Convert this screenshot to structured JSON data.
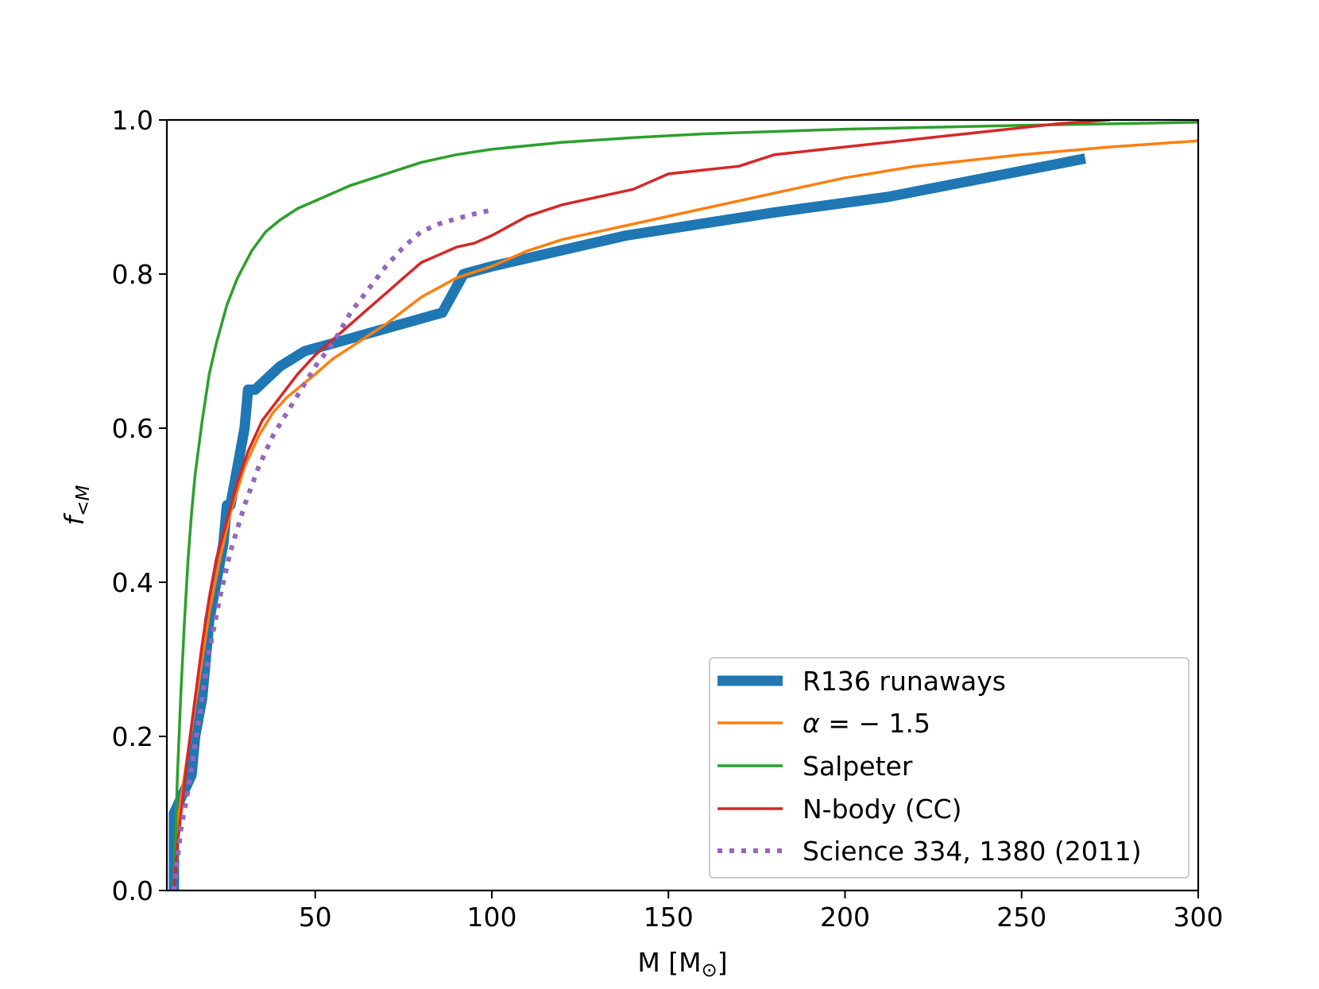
{
  "chart_data": {
    "type": "line",
    "title": "",
    "xlabel_main": "M [M",
    "xlabel_sub": "⊙",
    "xlabel_end": "]",
    "ylabel_main": "f",
    "ylabel_sub": "<M",
    "xlim": [
      8,
      300
    ],
    "ylim": [
      0,
      1.0
    ],
    "xticks": [
      50,
      100,
      150,
      200,
      250,
      300
    ],
    "xtick_labels": [
      "50",
      "100",
      "150",
      "200",
      "250",
      "300"
    ],
    "yticks": [
      0.0,
      0.2,
      0.4,
      0.6,
      0.8,
      1.0
    ],
    "ytick_labels": [
      "0.0",
      "0.2",
      "0.4",
      "0.6",
      "0.8",
      "1.0"
    ],
    "grid": false,
    "legend_position": "lower-right",
    "series": [
      {
        "name": "R136 runaways",
        "label": "R136 runaways",
        "color": "#1f77b4",
        "style": "thick",
        "x": [
          10,
          10,
          15,
          16,
          18,
          19,
          20,
          22,
          24,
          25,
          26,
          28,
          30,
          31,
          33,
          40,
          47,
          55,
          86,
          92,
          100,
          138,
          180,
          212,
          240,
          268
        ],
        "y": [
          0.0,
          0.1,
          0.15,
          0.2,
          0.25,
          0.3,
          0.35,
          0.4,
          0.45,
          0.5,
          0.5,
          0.55,
          0.6,
          0.65,
          0.65,
          0.68,
          0.7,
          0.71,
          0.75,
          0.8,
          0.81,
          0.85,
          0.88,
          0.9,
          0.925,
          0.95
        ]
      },
      {
        "name": "alpha = -1.5",
        "label_alpha": "α",
        "label_rest": " = − 1.5",
        "color": "#ff7f0e",
        "style": "solid",
        "x": [
          10,
          11,
          12,
          14,
          16,
          18,
          20,
          23,
          26,
          30,
          34,
          38,
          42,
          46,
          50,
          55,
          60,
          65,
          70,
          80,
          90,
          100,
          110,
          120,
          140,
          160,
          180,
          200,
          220,
          250,
          275,
          300
        ],
        "y": [
          0.0,
          0.08,
          0.12,
          0.18,
          0.24,
          0.3,
          0.36,
          0.43,
          0.49,
          0.55,
          0.59,
          0.62,
          0.64,
          0.655,
          0.67,
          0.69,
          0.705,
          0.72,
          0.735,
          0.77,
          0.795,
          0.81,
          0.83,
          0.845,
          0.865,
          0.885,
          0.905,
          0.925,
          0.94,
          0.955,
          0.965,
          0.973
        ]
      },
      {
        "name": "Salpeter",
        "label": "Salpeter",
        "color": "#2ca02c",
        "style": "solid",
        "x": [
          10,
          11,
          12,
          13,
          14,
          15,
          16,
          18,
          20,
          22,
          25,
          28,
          32,
          36,
          40,
          45,
          50,
          55,
          60,
          70,
          80,
          90,
          100,
          120,
          140,
          160,
          200,
          250,
          300
        ],
        "y": [
          0.0,
          0.15,
          0.26,
          0.35,
          0.43,
          0.49,
          0.54,
          0.61,
          0.67,
          0.71,
          0.76,
          0.795,
          0.83,
          0.855,
          0.87,
          0.885,
          0.895,
          0.905,
          0.915,
          0.93,
          0.945,
          0.955,
          0.962,
          0.971,
          0.977,
          0.982,
          0.988,
          0.993,
          0.997
        ]
      },
      {
        "name": "N-body (CC)",
        "label": "N-body (CC)",
        "color": "#d62728",
        "style": "solid",
        "x": [
          10,
          11,
          12,
          13,
          14,
          16,
          18,
          20,
          22,
          25,
          28,
          31,
          35,
          40,
          45,
          50,
          55,
          60,
          65,
          70,
          75,
          80,
          85,
          90,
          95,
          100,
          110,
          120,
          130,
          140,
          150,
          160,
          170,
          180,
          200,
          220,
          240,
          260,
          275
        ],
        "y": [
          0.0,
          0.06,
          0.1,
          0.14,
          0.18,
          0.25,
          0.32,
          0.38,
          0.43,
          0.48,
          0.53,
          0.57,
          0.61,
          0.64,
          0.67,
          0.695,
          0.715,
          0.735,
          0.755,
          0.775,
          0.795,
          0.815,
          0.825,
          0.835,
          0.84,
          0.85,
          0.875,
          0.89,
          0.9,
          0.91,
          0.93,
          0.935,
          0.94,
          0.955,
          0.965,
          0.975,
          0.985,
          0.995,
          1.0
        ]
      },
      {
        "name": "Science 334, 1380 (2011)",
        "label": "Science 334, 1380 (2011)",
        "color": "#9467bd",
        "style": "dotted",
        "x": [
          10,
          11,
          12,
          14,
          16,
          18,
          20,
          23,
          26,
          30,
          34,
          38,
          42,
          46,
          50,
          55,
          60,
          65,
          70,
          75,
          80,
          85,
          90,
          95,
          100
        ],
        "y": [
          0.0,
          0.04,
          0.08,
          0.13,
          0.19,
          0.25,
          0.31,
          0.38,
          0.44,
          0.5,
          0.55,
          0.59,
          0.62,
          0.65,
          0.68,
          0.71,
          0.75,
          0.78,
          0.81,
          0.835,
          0.855,
          0.865,
          0.872,
          0.878,
          0.883
        ]
      }
    ]
  }
}
